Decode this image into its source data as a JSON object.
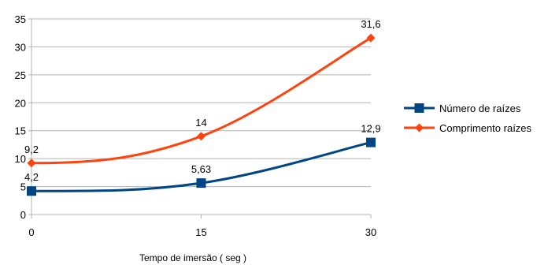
{
  "chart_data": {
    "type": "line",
    "title": "",
    "xlabel": "Tempo de imersão ( seg )",
    "ylabel": "",
    "categories": [
      "0",
      "15",
      "30"
    ],
    "x": [
      0,
      15,
      30
    ],
    "ylim": [
      0,
      35
    ],
    "yticks": [
      0,
      5,
      10,
      15,
      20,
      25,
      30,
      35
    ],
    "grid": true,
    "smooth": true,
    "legend_position": "right",
    "series": [
      {
        "name": "Número de raízes",
        "values": [
          4.2,
          5.63,
          12.9
        ],
        "labels": [
          "4,2",
          "5,63",
          "12,9"
        ],
        "color": "#004586",
        "marker": "square"
      },
      {
        "name": "Comprimento raízes",
        "values": [
          9.2,
          14,
          31.6
        ],
        "labels": [
          "9,2",
          "14",
          "31,6"
        ],
        "color": "#ff420e",
        "marker": "diamond"
      }
    ]
  }
}
